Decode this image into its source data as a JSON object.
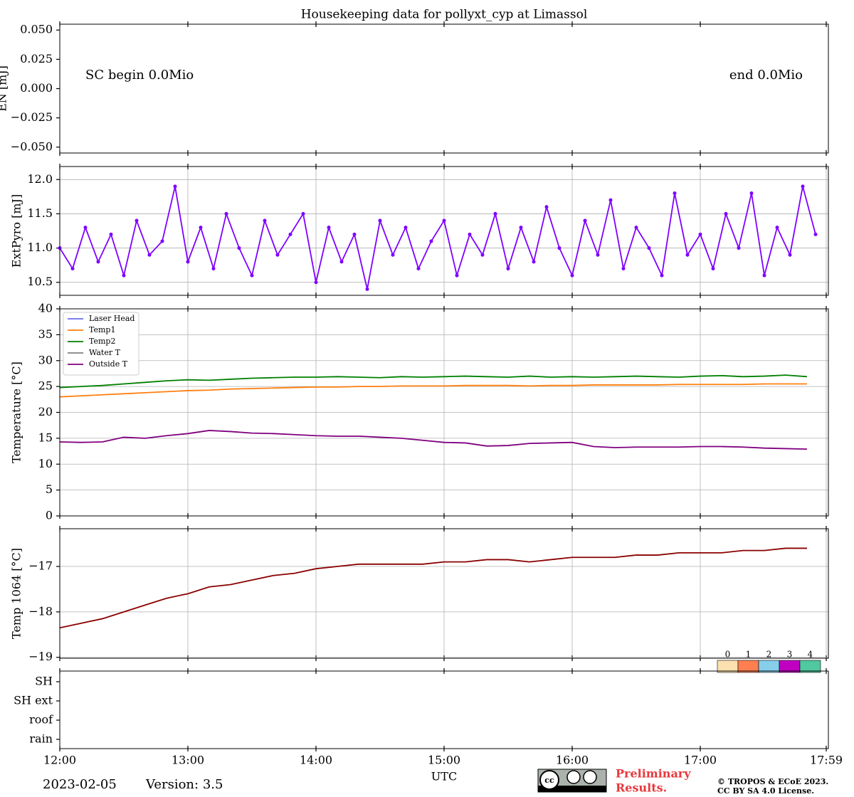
{
  "title": "Housekeeping data for pollyxt_cyp at Limassol",
  "chart_data": [
    {
      "type": "line",
      "ylabel": "EN [mJ]",
      "ylim": [
        -0.055,
        0.055
      ],
      "yticks": [
        {
          "value": 0.05,
          "label": "0.050"
        },
        {
          "value": 0.025,
          "label": "0.025"
        },
        {
          "value": 0,
          "label": "0.000"
        },
        {
          "value": -0.025,
          "label": "−0.025"
        },
        {
          "value": -0.05,
          "label": "−0.050"
        }
      ],
      "xlim": [
        720,
        1080
      ],
      "xticks": [
        {
          "value": 720,
          "label": "12:00"
        },
        {
          "value": 780,
          "label": "13:00"
        },
        {
          "value": 840,
          "label": "14:00"
        },
        {
          "value": 900,
          "label": "15:00"
        },
        {
          "value": 960,
          "label": "16:00"
        },
        {
          "value": 1020,
          "label": "17:00"
        },
        {
          "value": 1079,
          "label": "17:59"
        }
      ],
      "grid": false,
      "annotations": [
        "SC begin 0.0Mio",
        "end 0.0Mio"
      ],
      "series": []
    },
    {
      "type": "line",
      "ylabel": "ExtPyro [mJ]",
      "ylim": [
        10.31,
        12.19
      ],
      "yticks": [
        {
          "value": 10.5,
          "label": "10.5"
        },
        {
          "value": 11,
          "label": "11.0"
        },
        {
          "value": 11.5,
          "label": "11.5"
        },
        {
          "value": 12,
          "label": "12.0"
        }
      ],
      "xlim": [
        720,
        1080
      ],
      "xticks": [
        {
          "value": 720,
          "label": "12:00"
        },
        {
          "value": 780,
          "label": "13:00"
        },
        {
          "value": 840,
          "label": "14:00"
        },
        {
          "value": 900,
          "label": "15:00"
        },
        {
          "value": 960,
          "label": "16:00"
        },
        {
          "value": 1020,
          "label": "17:00"
        },
        {
          "value": 1079,
          "label": "17:59"
        }
      ],
      "grid": true,
      "x": [
        720,
        726,
        732,
        738,
        744,
        750,
        756,
        762,
        768,
        774,
        780,
        786,
        792,
        798,
        804,
        810,
        816,
        822,
        828,
        834,
        840,
        846,
        852,
        858,
        864,
        870,
        876,
        882,
        888,
        894,
        900,
        906,
        912,
        918,
        924,
        930,
        936,
        942,
        948,
        954,
        960,
        966,
        972,
        978,
        984,
        990,
        996,
        1002,
        1008,
        1014,
        1020,
        1026,
        1032,
        1038,
        1044,
        1050,
        1056,
        1062,
        1068,
        1074
      ],
      "series": [
        {
          "name": "ExtPyro",
          "color": "#7f00ff",
          "marker": true,
          "values": [
            11.0,
            10.7,
            11.3,
            10.8,
            11.2,
            10.6,
            11.4,
            10.9,
            11.1,
            11.9,
            10.8,
            11.3,
            10.7,
            11.5,
            11.0,
            10.6,
            11.4,
            10.9,
            11.2,
            11.5,
            10.5,
            11.3,
            10.8,
            11.2,
            10.4,
            11.4,
            10.9,
            11.3,
            10.7,
            11.1,
            11.4,
            10.6,
            11.2,
            10.9,
            11.5,
            10.7,
            11.3,
            10.8,
            11.6,
            11.0,
            10.6,
            11.4,
            10.9,
            11.7,
            10.7,
            11.3,
            11.0,
            10.6,
            11.8,
            10.9,
            11.2,
            10.7,
            11.5,
            11.0,
            11.8,
            10.6,
            11.3,
            10.9,
            11.9,
            11.2
          ]
        }
      ]
    },
    {
      "type": "line",
      "ylabel": "Temperature [°C]",
      "ylim": [
        0,
        40
      ],
      "yticks": [
        0,
        5,
        10,
        15,
        20,
        25,
        30,
        35,
        40
      ],
      "xlim": [
        720,
        1080
      ],
      "xticks": [
        {
          "value": 720,
          "label": "12:00"
        },
        {
          "value": 780,
          "label": "13:00"
        },
        {
          "value": 840,
          "label": "14:00"
        },
        {
          "value": 900,
          "label": "15:00"
        },
        {
          "value": 960,
          "label": "16:00"
        },
        {
          "value": 1020,
          "label": "17:00"
        },
        {
          "value": 1079,
          "label": "17:59"
        }
      ],
      "grid": true,
      "legend": "upper-left",
      "x": [
        720,
        730,
        740,
        750,
        760,
        770,
        780,
        790,
        800,
        810,
        820,
        830,
        840,
        850,
        860,
        870,
        880,
        890,
        900,
        910,
        920,
        930,
        940,
        950,
        960,
        970,
        980,
        990,
        1000,
        1010,
        1020,
        1030,
        1040,
        1050,
        1060,
        1070
      ],
      "series": [
        {
          "name": "Laser Head",
          "color": "#6b6bf0",
          "values": [
            null,
            null,
            null,
            null,
            null,
            null,
            null,
            null,
            null,
            null,
            null,
            null,
            null,
            null,
            null,
            null,
            null,
            null,
            null,
            null,
            null,
            null,
            null,
            null,
            null,
            null,
            null,
            null,
            null,
            null,
            null,
            null,
            null,
            null,
            null,
            null
          ]
        },
        {
          "name": "Temp1",
          "color": "#ff7f0e",
          "values": [
            23.0,
            23.2,
            23.4,
            23.6,
            23.8,
            24.0,
            24.2,
            24.3,
            24.5,
            24.6,
            24.7,
            24.8,
            24.9,
            24.9,
            25.0,
            25.0,
            25.1,
            25.1,
            25.1,
            25.2,
            25.2,
            25.2,
            25.1,
            25.2,
            25.2,
            25.3,
            25.3,
            25.3,
            25.3,
            25.4,
            25.4,
            25.4,
            25.4,
            25.5,
            25.5,
            25.5
          ]
        },
        {
          "name": "Temp2",
          "color": "#008000",
          "values": [
            24.8,
            25.0,
            25.2,
            25.5,
            25.8,
            26.1,
            26.3,
            26.2,
            26.4,
            26.6,
            26.7,
            26.8,
            26.8,
            26.9,
            26.8,
            26.7,
            26.9,
            26.8,
            26.9,
            27.0,
            26.9,
            26.8,
            27.0,
            26.8,
            26.9,
            26.8,
            26.9,
            27.0,
            26.9,
            26.8,
            27.0,
            27.1,
            26.9,
            27.0,
            27.2,
            26.9
          ]
        },
        {
          "name": "Water T",
          "color": "#808080",
          "values": [
            null,
            null,
            null,
            null,
            null,
            null,
            null,
            null,
            null,
            null,
            null,
            null,
            null,
            null,
            null,
            null,
            null,
            null,
            null,
            null,
            null,
            null,
            null,
            null,
            null,
            null,
            null,
            null,
            null,
            null,
            null,
            null,
            null,
            null,
            null,
            null
          ]
        },
        {
          "name": "Outside T",
          "color": "#800080",
          "values": [
            14.3,
            14.2,
            14.3,
            15.2,
            15.0,
            15.5,
            15.9,
            16.5,
            16.3,
            16.0,
            15.9,
            15.7,
            15.5,
            15.4,
            15.4,
            15.2,
            15.0,
            14.6,
            14.2,
            14.1,
            13.5,
            13.6,
            14.0,
            14.1,
            14.2,
            13.4,
            13.2,
            13.3,
            13.3,
            13.3,
            13.4,
            13.4,
            13.3,
            13.1,
            13.0,
            12.9
          ]
        }
      ]
    },
    {
      "type": "line",
      "ylabel": "Temp 1064 [°C]",
      "ylim": [
        -19.02,
        -16.17
      ],
      "yticks": [
        {
          "value": -19,
          "label": "−19"
        },
        {
          "value": -18,
          "label": "−18"
        },
        {
          "value": -17,
          "label": "−17"
        }
      ],
      "xlim": [
        720,
        1080
      ],
      "xticks": [
        {
          "value": 720,
          "label": "12:00"
        },
        {
          "value": 780,
          "label": "13:00"
        },
        {
          "value": 840,
          "label": "14:00"
        },
        {
          "value": 900,
          "label": "15:00"
        },
        {
          "value": 960,
          "label": "16:00"
        },
        {
          "value": 1020,
          "label": "17:00"
        },
        {
          "value": 1079,
          "label": "17:59"
        }
      ],
      "grid": true,
      "x": [
        720,
        730,
        740,
        750,
        760,
        770,
        780,
        790,
        800,
        810,
        820,
        830,
        840,
        850,
        860,
        870,
        880,
        890,
        900,
        910,
        920,
        930,
        940,
        950,
        960,
        970,
        980,
        990,
        1000,
        1010,
        1020,
        1030,
        1040,
        1050,
        1060,
        1070
      ],
      "series": [
        {
          "name": "Temp 1064",
          "color": "#8b0000",
          "values": [
            -18.35,
            -18.25,
            -18.15,
            -18.0,
            -17.85,
            -17.7,
            -17.6,
            -17.45,
            -17.4,
            -17.3,
            -17.2,
            -17.15,
            -17.05,
            -17.0,
            -16.95,
            -16.95,
            -16.95,
            -16.95,
            -16.9,
            -16.9,
            -16.85,
            -16.85,
            -16.9,
            -16.85,
            -16.8,
            -16.8,
            -16.8,
            -16.75,
            -16.75,
            -16.7,
            -16.7,
            -16.7,
            -16.65,
            -16.65,
            -16.6,
            -16.6
          ]
        }
      ]
    },
    {
      "type": "status",
      "categories": [
        "SH",
        "SH ext",
        "roof",
        "rain"
      ],
      "xlabel": "UTC",
      "xlim": [
        720,
        1080
      ],
      "xticks": [
        {
          "value": 720,
          "label": "12:00"
        },
        {
          "value": 780,
          "label": "13:00"
        },
        {
          "value": 840,
          "label": "14:00"
        },
        {
          "value": 900,
          "label": "15:00"
        },
        {
          "value": 960,
          "label": "16:00"
        },
        {
          "value": 1020,
          "label": "17:00"
        },
        {
          "value": 1079,
          "label": "17:59"
        }
      ],
      "grid": false,
      "colorbar": {
        "ticks": [
          0,
          1,
          2,
          3,
          4
        ],
        "colors": [
          "#fde0b0",
          "#ff7f50",
          "#87ceeb",
          "#c000c0",
          "#50c8a0"
        ]
      }
    }
  ],
  "footer": {
    "date": "2023-02-05",
    "version": "Version: 3.5",
    "preliminary": [
      "Preliminary",
      "Results."
    ],
    "copyright": [
      "© TROPOS & ECoE 2023.",
      "CC BY SA 4.0 License."
    ]
  }
}
